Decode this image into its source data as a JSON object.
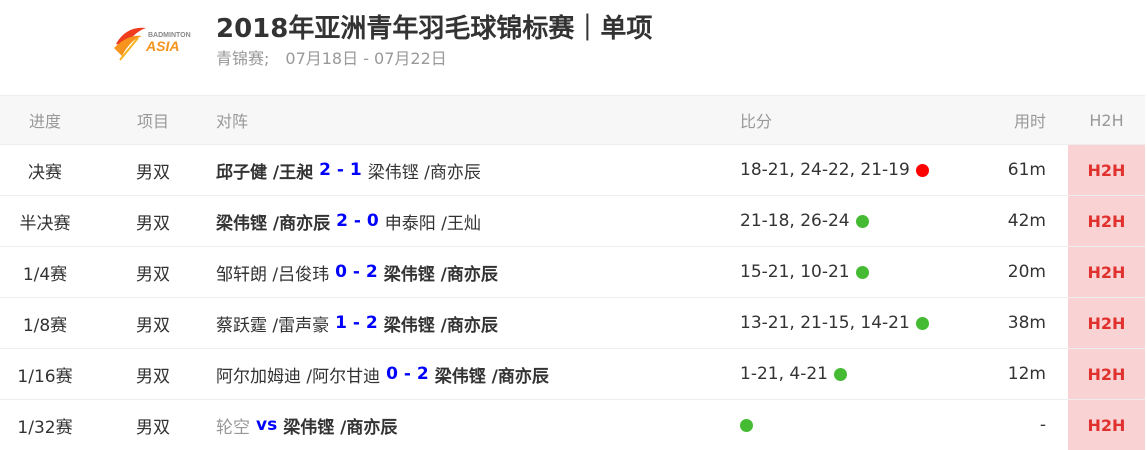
{
  "header": {
    "logo_text_top": "BADMINTON",
    "logo_text_main": "ASIA",
    "title": "2018年亚洲青年羽毛球锦标赛｜单项",
    "subtitle": "青锦赛;　07月18日 - 07月22日"
  },
  "columns": [
    "进度",
    "项目",
    "对阵",
    "比分",
    "用时",
    "H2H"
  ],
  "colors": {
    "live": "#ff0000",
    "done": "#44bb33",
    "h2h_bg": "#f9d3d3",
    "h2h_text": "#e0312e",
    "score": "#0000ff"
  },
  "rows": [
    {
      "round": "决赛",
      "event": "男双",
      "left": "邱子健 /王昶",
      "left_win": true,
      "score": "2 - 1",
      "right": "梁伟铿 /商亦辰",
      "right_win": false,
      "games": "18-21, 24-22, 21-19",
      "status": "live",
      "time": "61m",
      "h2h": "H2H"
    },
    {
      "round": "半决赛",
      "event": "男双",
      "left": "梁伟铿 /商亦辰",
      "left_win": true,
      "score": "2 - 0",
      "right": "申泰阳 /王灿",
      "right_win": false,
      "games": "21-18, 26-24",
      "status": "done",
      "time": "42m",
      "h2h": "H2H"
    },
    {
      "round": "1/4赛",
      "event": "男双",
      "left": "邹轩朗 /吕俊玮",
      "left_win": false,
      "score": "0 - 2",
      "right": "梁伟铿 /商亦辰",
      "right_win": true,
      "games": "15-21, 10-21",
      "status": "done",
      "time": "20m",
      "h2h": "H2H"
    },
    {
      "round": "1/8赛",
      "event": "男双",
      "left": "蔡跃霆 /雷声豪",
      "left_win": false,
      "score": "1 - 2",
      "right": "梁伟铿 /商亦辰",
      "right_win": true,
      "games": "13-21, 21-15, 14-21",
      "status": "done",
      "time": "38m",
      "h2h": "H2H"
    },
    {
      "round": "1/16赛",
      "event": "男双",
      "left": "阿尔加姆迪 /阿尔甘迪",
      "left_win": false,
      "score": "0 - 2",
      "right": "梁伟铿 /商亦辰",
      "right_win": true,
      "games": "1-21, 4-21",
      "status": "done",
      "time": "12m",
      "h2h": "H2H"
    },
    {
      "round": "1/32赛",
      "event": "男双",
      "left": "轮空",
      "left_win": false,
      "bye": true,
      "score": "vs",
      "right": "梁伟铿 /商亦辰",
      "right_win": true,
      "games": "",
      "status": "done",
      "time": "-",
      "h2h": "H2H"
    }
  ]
}
